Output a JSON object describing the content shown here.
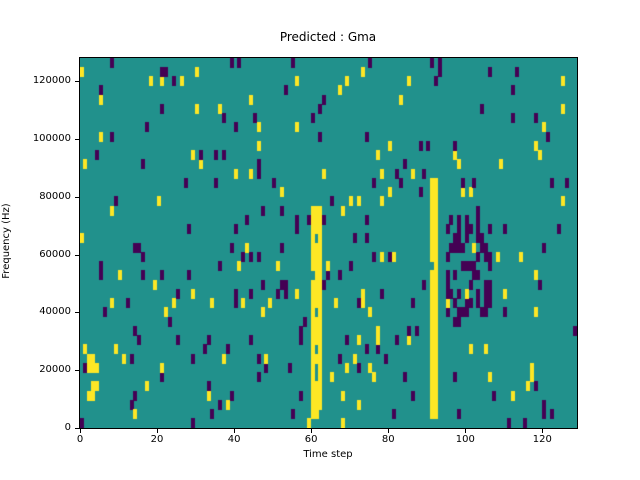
{
  "figure": {
    "title": "Predicted : Gma",
    "xlabel": "Time step",
    "ylabel": "Frequency (Hz)"
  },
  "chart_data": {
    "type": "heatmap",
    "title": "Predicted : Gma",
    "xlabel": "Time step",
    "ylabel": "Frequency (Hz)",
    "x_range": [
      0,
      129
    ],
    "y_range": [
      0,
      128000
    ],
    "x_ticks": [
      0,
      20,
      40,
      60,
      80,
      100,
      120
    ],
    "y_ticks": [
      0,
      20000,
      40000,
      60000,
      80000,
      100000,
      120000
    ],
    "grid": {
      "cols": 129,
      "rows": 40
    },
    "colors": {
      "mid": "#21918c",
      "low": "#440154",
      "high": "#fde725"
    },
    "noise": {
      "seed": 7,
      "low_density": 0.032,
      "high_density": 0.024
    },
    "features": [
      {
        "kind": "column",
        "value": "high",
        "x": [
          60,
          63
        ],
        "freq": [
          4000,
          76000
        ],
        "fill": 0.93
      },
      {
        "kind": "column",
        "value": "high",
        "x": [
          91,
          93
        ],
        "freq": [
          2000,
          86000
        ],
        "fill": 0.9
      },
      {
        "kind": "cluster",
        "value": "low",
        "x": [
          95,
          107
        ],
        "freq": [
          38000,
          74000
        ],
        "fill": 0.38
      },
      {
        "kind": "cluster",
        "value": "high",
        "x": [
          2,
          5
        ],
        "freq": [
          8000,
          26000
        ],
        "fill": 0.5
      }
    ],
    "legend": null,
    "grid_lines": false
  }
}
